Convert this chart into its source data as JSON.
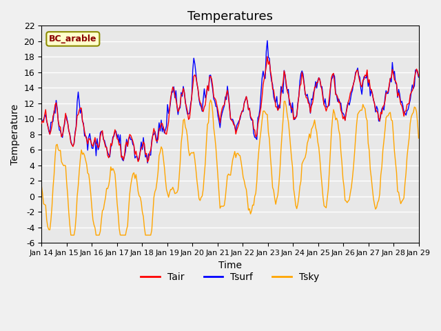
{
  "title": "Temperatures",
  "xlabel": "Time",
  "ylabel": "Temperature",
  "ylim": [
    -6,
    22
  ],
  "yticks": [
    -6,
    -4,
    -2,
    0,
    2,
    4,
    6,
    8,
    10,
    12,
    14,
    16,
    18,
    20,
    22
  ],
  "x_labels": [
    "Jan 14",
    "Jan 15",
    "Jan 16",
    "Jan 17",
    "Jan 18",
    "Jan 19",
    "Jan 20",
    "Jan 21",
    "Jan 22",
    "Jan 23",
    "Jan 24",
    "Jan 25",
    "Jan 26",
    "Jan 27",
    "Jan 28",
    "Jan 29"
  ],
  "legend_labels": [
    "Tair",
    "Tsurf",
    "Tsky"
  ],
  "line_colors": [
    "red",
    "blue",
    "orange"
  ],
  "annotation_text": "BC_arable",
  "annotation_color": "#8B0000",
  "annotation_bg": "#FFFFCC",
  "bg_color": "#E8E8E8",
  "plot_bg": "#E8E8E8",
  "title_fontsize": 13,
  "axis_fontsize": 10
}
